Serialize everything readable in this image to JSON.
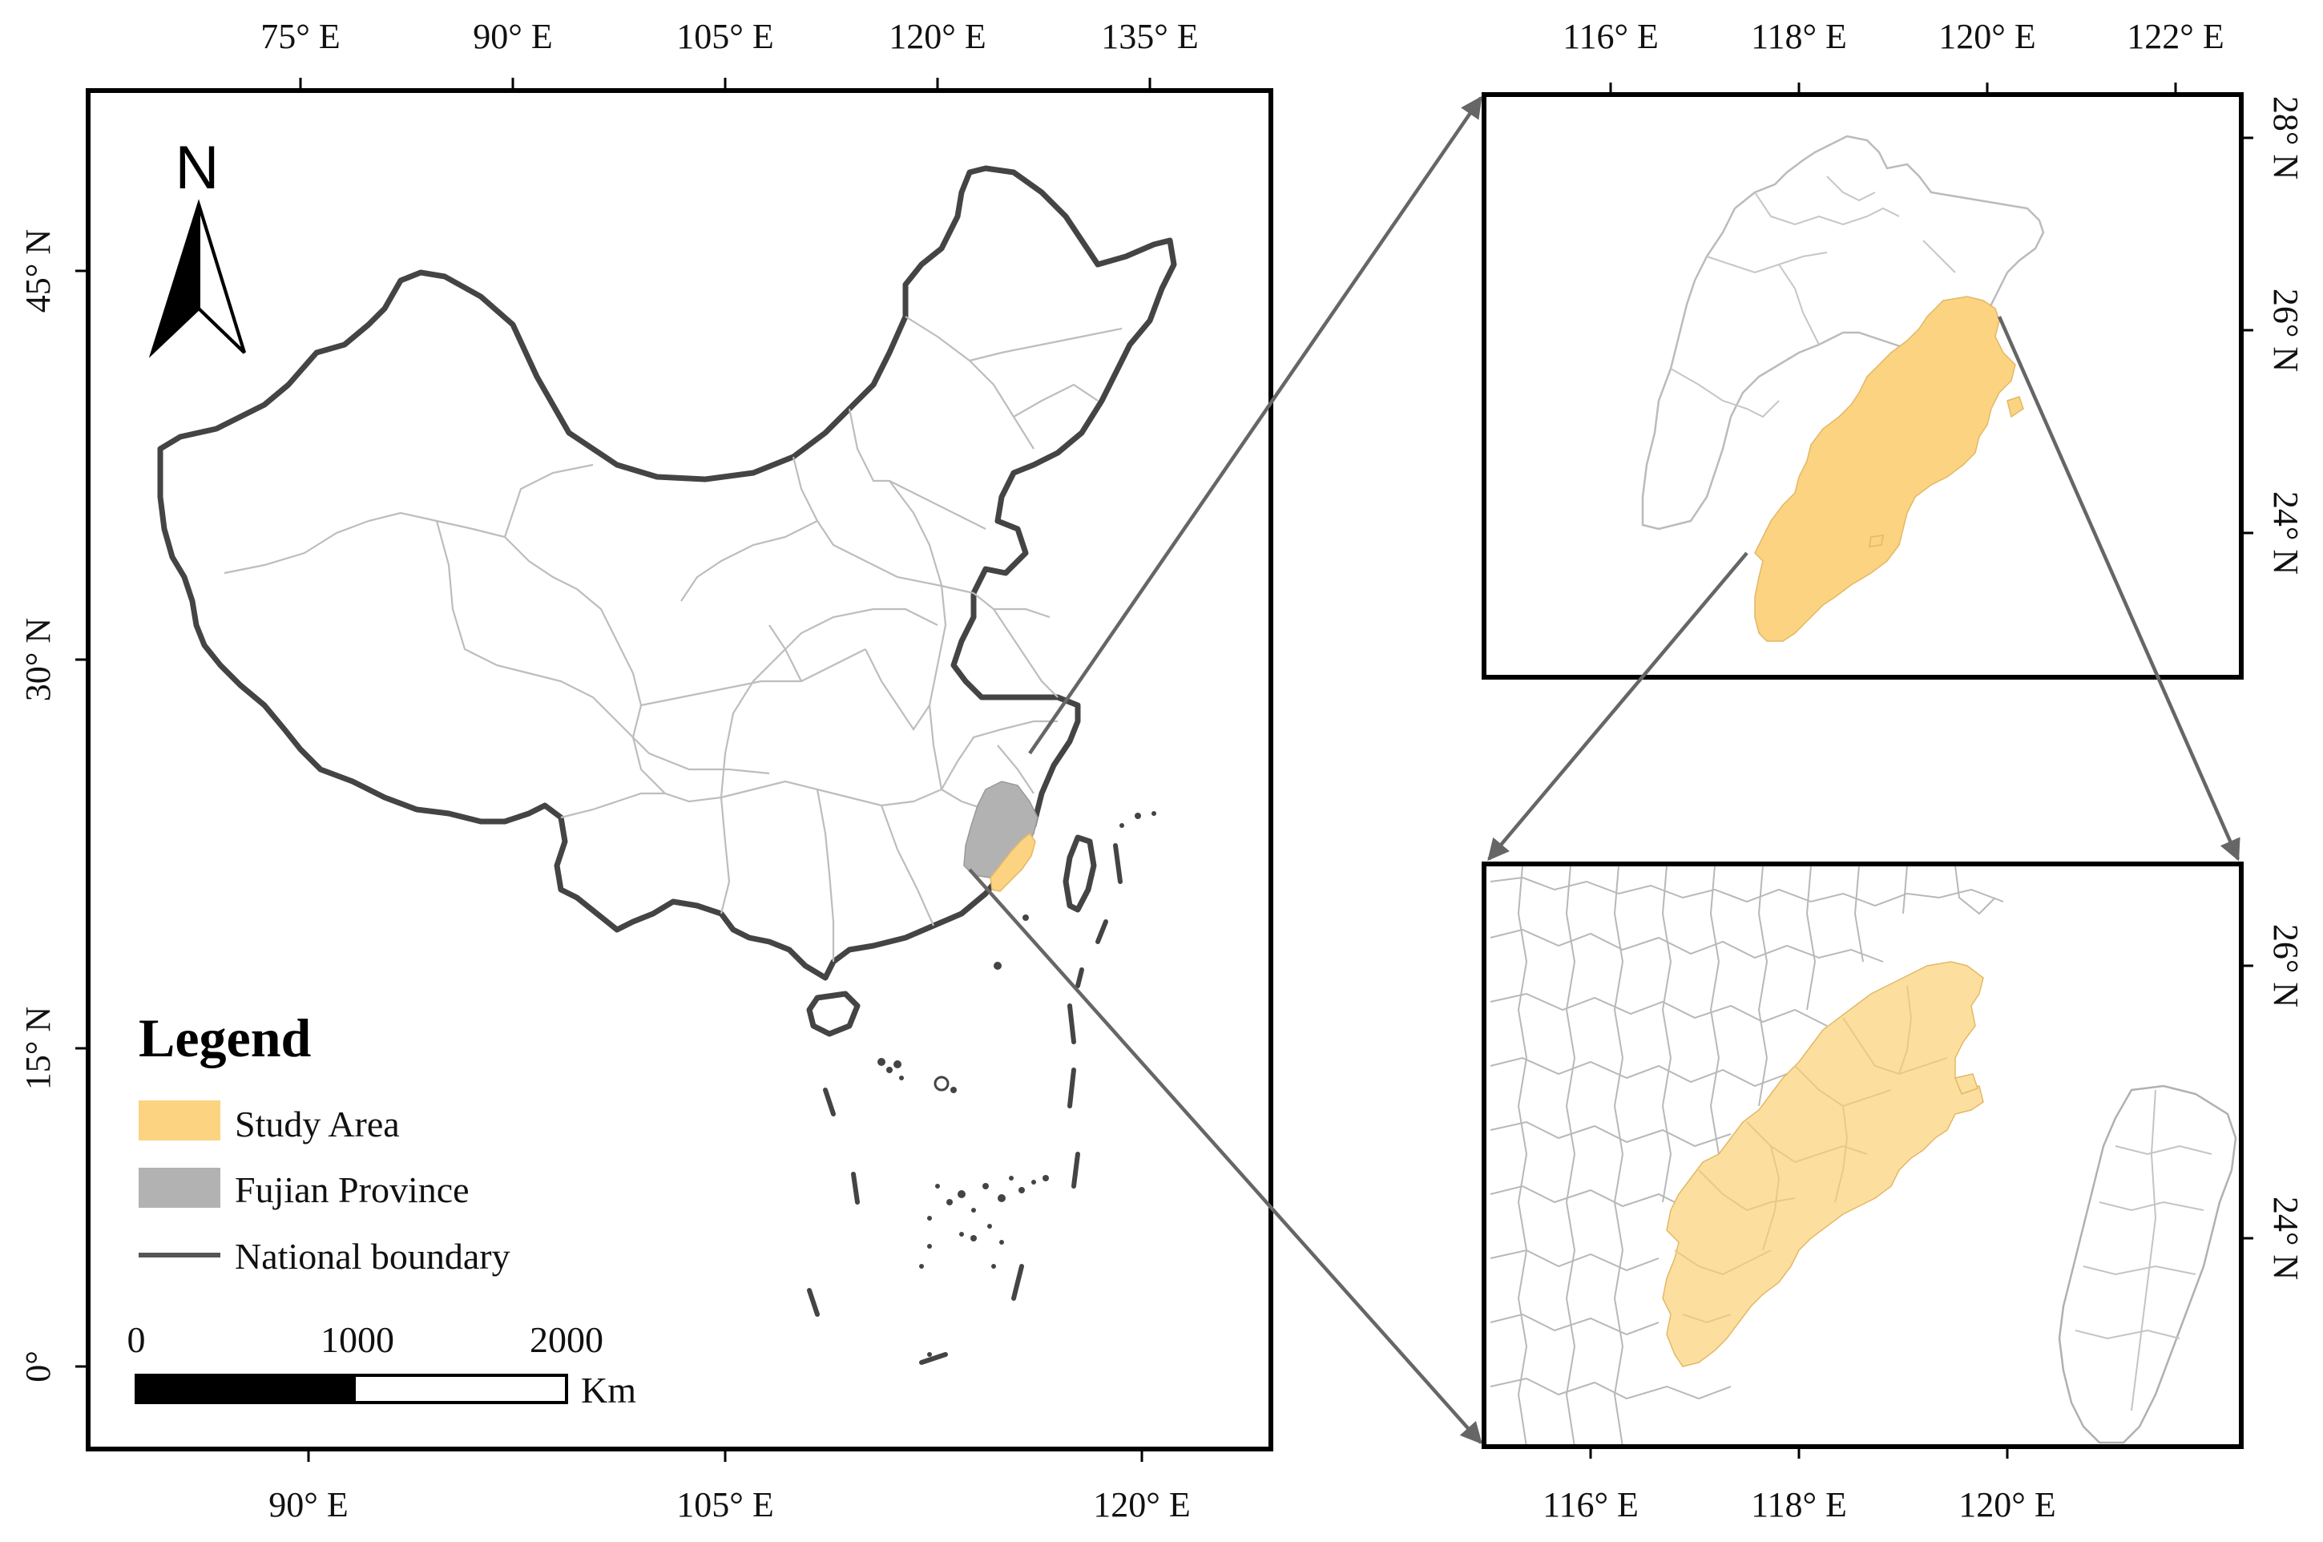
{
  "main_map": {
    "top_ticks": [
      "75° E",
      "90° E",
      "105° E",
      "120° E",
      "135° E"
    ],
    "bottom_ticks": [
      "90° E",
      "105° E",
      "120° E"
    ],
    "left_ticks": [
      "45° N",
      "30° N",
      "15° N",
      "0°"
    ],
    "north_label": "N",
    "legend": {
      "title": "Legend",
      "items": [
        {
          "label": "Study Area",
          "color": "#fcd381"
        },
        {
          "label": "Fujian Province",
          "color": "#b2b2b2"
        },
        {
          "label": "National boundary",
          "color": "#555555"
        }
      ]
    },
    "scale_bar": {
      "labels": [
        "0",
        "1000",
        "2000"
      ],
      "unit": "Km"
    }
  },
  "inset_top": {
    "top_ticks": [
      "116° E",
      "118° E",
      "120° E",
      "122° E"
    ],
    "right_ticks": [
      "28° N",
      "26° N",
      "24° N"
    ]
  },
  "inset_bottom": {
    "bottom_ticks": [
      "116° E",
      "118° E",
      "120° E"
    ],
    "right_ticks": [
      "26° N",
      "24° N"
    ]
  },
  "colors": {
    "study_area": "#fcd381",
    "fujian": "#b2b2b2",
    "national_boundary": "#555555",
    "connector": "#666666"
  }
}
